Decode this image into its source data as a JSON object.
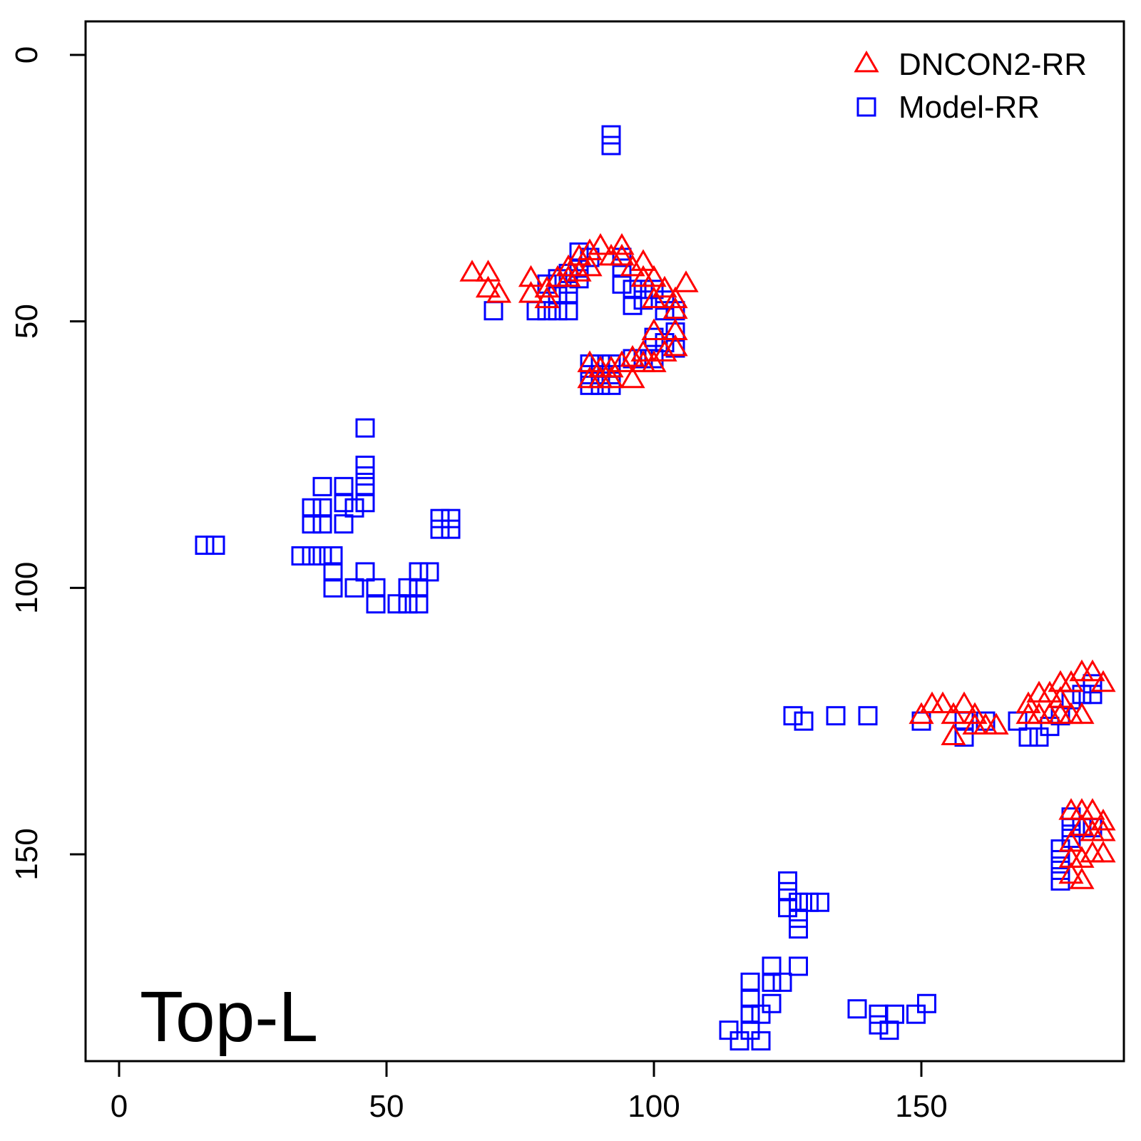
{
  "chart_data": {
    "type": "scatter",
    "title": "",
    "xlabel": "",
    "ylabel": "",
    "panel_label": "Top-L",
    "xlim": [
      -6,
      189
    ],
    "ylim": [
      0,
      188
    ],
    "y_axis_reversed": true,
    "grid": false,
    "legend_position": "top-right",
    "x_ticks": [
      "0",
      "50",
      "100",
      "150"
    ],
    "y_ticks": [
      "0",
      "50",
      "100",
      "150"
    ],
    "series": [
      {
        "name": "Model-RR",
        "marker": "square",
        "color": "#0000ff",
        "points": [
          [
            92,
            15
          ],
          [
            92,
            17
          ],
          [
            86,
            37
          ],
          [
            88,
            38
          ],
          [
            94,
            38
          ],
          [
            94,
            40
          ],
          [
            86,
            40
          ],
          [
            84,
            41
          ],
          [
            82,
            42
          ],
          [
            86,
            42
          ],
          [
            80,
            43
          ],
          [
            84,
            43
          ],
          [
            94,
            43
          ],
          [
            96,
            44
          ],
          [
            98,
            44
          ],
          [
            100,
            44
          ],
          [
            82,
            45
          ],
          [
            84,
            45
          ],
          [
            98,
            46
          ],
          [
            102,
            46
          ],
          [
            96,
            47
          ],
          [
            78,
            48
          ],
          [
            80,
            48
          ],
          [
            82,
            48
          ],
          [
            84,
            48
          ],
          [
            70,
            48
          ],
          [
            102,
            48
          ],
          [
            104,
            48
          ],
          [
            104,
            52
          ],
          [
            100,
            53
          ],
          [
            102,
            54
          ],
          [
            104,
            55
          ],
          [
            96,
            57
          ],
          [
            98,
            57
          ],
          [
            100,
            57
          ],
          [
            88,
            58
          ],
          [
            90,
            58
          ],
          [
            92,
            58
          ],
          [
            88,
            60
          ],
          [
            90,
            60
          ],
          [
            92,
            60
          ],
          [
            88,
            62
          ],
          [
            90,
            62
          ],
          [
            92,
            62
          ],
          [
            46,
            70
          ],
          [
            46,
            77
          ],
          [
            46,
            79
          ],
          [
            46,
            81
          ],
          [
            38,
            81
          ],
          [
            42,
            81
          ],
          [
            46,
            84
          ],
          [
            42,
            84
          ],
          [
            38,
            85
          ],
          [
            36,
            85
          ],
          [
            42,
            88
          ],
          [
            38,
            88
          ],
          [
            36,
            88
          ],
          [
            44,
            85
          ],
          [
            60,
            87
          ],
          [
            62,
            87
          ],
          [
            60,
            89
          ],
          [
            62,
            89
          ],
          [
            16,
            92
          ],
          [
            18,
            92
          ],
          [
            34,
            94
          ],
          [
            36,
            94
          ],
          [
            38,
            94
          ],
          [
            40,
            94
          ],
          [
            40,
            97
          ],
          [
            46,
            97
          ],
          [
            56,
            97
          ],
          [
            58,
            97
          ],
          [
            40,
            100
          ],
          [
            44,
            100
          ],
          [
            48,
            100
          ],
          [
            56,
            100
          ],
          [
            54,
            100
          ],
          [
            52,
            103
          ],
          [
            54,
            103
          ],
          [
            56,
            103
          ],
          [
            48,
            103
          ],
          [
            126,
            124
          ],
          [
            128,
            125
          ],
          [
            134,
            124
          ],
          [
            140,
            124
          ],
          [
            150,
            125
          ],
          [
            158,
            125
          ],
          [
            162,
            125
          ],
          [
            168,
            125
          ],
          [
            158,
            128
          ],
          [
            170,
            128
          ],
          [
            172,
            128
          ],
          [
            174,
            126
          ],
          [
            176,
            124
          ],
          [
            178,
            121
          ],
          [
            180,
            120
          ],
          [
            182,
            120
          ],
          [
            182,
            118
          ],
          [
            178,
            143
          ],
          [
            178,
            145
          ],
          [
            178,
            147
          ],
          [
            180,
            145
          ],
          [
            182,
            145
          ],
          [
            176,
            149
          ],
          [
            176,
            151
          ],
          [
            176,
            153
          ],
          [
            176,
            155
          ],
          [
            125,
            155
          ],
          [
            125,
            157
          ],
          [
            125,
            160
          ],
          [
            127,
            159
          ],
          [
            129,
            159
          ],
          [
            131,
            159
          ],
          [
            127,
            162
          ],
          [
            127,
            164
          ],
          [
            122,
            171
          ],
          [
            127,
            171
          ],
          [
            122,
            174
          ],
          [
            124,
            174
          ],
          [
            118,
            174
          ],
          [
            118,
            177
          ],
          [
            122,
            178
          ],
          [
            120,
            180
          ],
          [
            118,
            180
          ],
          [
            114,
            183
          ],
          [
            118,
            183
          ],
          [
            116,
            185
          ],
          [
            120,
            185
          ],
          [
            138,
            179
          ],
          [
            142,
            180
          ],
          [
            145,
            180
          ],
          [
            149,
            180
          ],
          [
            151,
            178
          ],
          [
            142,
            182
          ],
          [
            144,
            183
          ]
        ]
      },
      {
        "name": "DNCON2-RR",
        "marker": "triangle",
        "color": "#ff0000",
        "points": [
          [
            66,
            41
          ],
          [
            69,
            41
          ],
          [
            69,
            44
          ],
          [
            71,
            45
          ],
          [
            77,
            42
          ],
          [
            77,
            45
          ],
          [
            80,
            44
          ],
          [
            80,
            46
          ],
          [
            82,
            42
          ],
          [
            84,
            40
          ],
          [
            84,
            42
          ],
          [
            86,
            38
          ],
          [
            86,
            41
          ],
          [
            88,
            40
          ],
          [
            88,
            37
          ],
          [
            90,
            36
          ],
          [
            92,
            38
          ],
          [
            94,
            36
          ],
          [
            94,
            38
          ],
          [
            96,
            40
          ],
          [
            98,
            39
          ],
          [
            98,
            42
          ],
          [
            100,
            42
          ],
          [
            102,
            44
          ],
          [
            104,
            46
          ],
          [
            106,
            43
          ],
          [
            100,
            46
          ],
          [
            104,
            48
          ],
          [
            100,
            52
          ],
          [
            104,
            52
          ],
          [
            104,
            55
          ],
          [
            102,
            56
          ],
          [
            98,
            56
          ],
          [
            96,
            57
          ],
          [
            98,
            58
          ],
          [
            100,
            58
          ],
          [
            88,
            58
          ],
          [
            90,
            59
          ],
          [
            92,
            59
          ],
          [
            94,
            58
          ],
          [
            88,
            61
          ],
          [
            90,
            61
          ],
          [
            92,
            61
          ],
          [
            96,
            61
          ],
          [
            150,
            124
          ],
          [
            152,
            122
          ],
          [
            154,
            122
          ],
          [
            156,
            124
          ],
          [
            156,
            128
          ],
          [
            158,
            122
          ],
          [
            160,
            124
          ],
          [
            160,
            126
          ],
          [
            162,
            126
          ],
          [
            164,
            126
          ],
          [
            170,
            122
          ],
          [
            172,
            120
          ],
          [
            174,
            120
          ],
          [
            176,
            118
          ],
          [
            176,
            121
          ],
          [
            178,
            118
          ],
          [
            180,
            116
          ],
          [
            182,
            116
          ],
          [
            184,
            118
          ],
          [
            170,
            124
          ],
          [
            172,
            124
          ],
          [
            174,
            124
          ],
          [
            176,
            124
          ],
          [
            178,
            124
          ],
          [
            180,
            124
          ],
          [
            178,
            142
          ],
          [
            180,
            142
          ],
          [
            182,
            142
          ],
          [
            184,
            144
          ],
          [
            180,
            145
          ],
          [
            182,
            146
          ],
          [
            184,
            146
          ],
          [
            178,
            148
          ],
          [
            178,
            151
          ],
          [
            180,
            151
          ],
          [
            182,
            150
          ],
          [
            184,
            150
          ],
          [
            180,
            155
          ],
          [
            178,
            154
          ]
        ]
      }
    ]
  }
}
